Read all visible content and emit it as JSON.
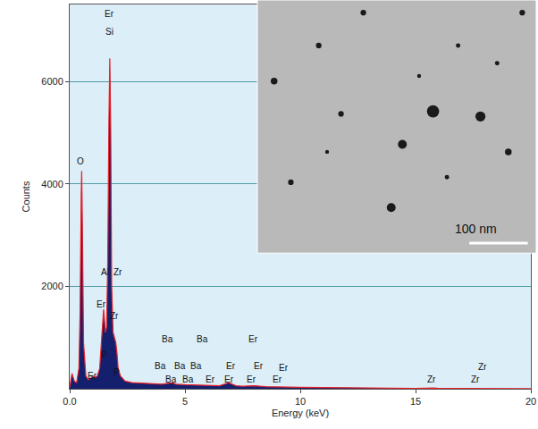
{
  "chart_data": {
    "type": "area",
    "x_label": "Energy (keV)",
    "y_label": "Counts",
    "x": [
      0.0,
      0.1,
      0.2,
      0.3,
      0.4,
      0.45,
      0.5,
      0.52,
      0.55,
      0.6,
      0.7,
      0.8,
      0.9,
      1.0,
      1.1,
      1.2,
      1.3,
      1.38,
      1.42,
      1.47,
      1.5,
      1.55,
      1.6,
      1.65,
      1.7,
      1.74,
      1.78,
      1.82,
      1.88,
      1.95,
      2.0,
      2.05,
      2.1,
      2.2,
      2.4,
      2.7,
      3.0,
      3.5,
      4.0,
      4.47,
      4.6,
      5.0,
      5.5,
      6.0,
      6.5,
      6.9,
      7.2,
      7.5,
      8.0,
      8.5,
      9.0,
      10.0,
      11.0,
      12.0,
      13.0,
      14.0,
      15.0,
      15.8,
      16.0,
      17.0,
      18.0,
      19.0,
      20.0
    ],
    "values": [
      30,
      300,
      150,
      120,
      400,
      1500,
      3800,
      4250,
      3200,
      900,
      250,
      180,
      200,
      250,
      220,
      250,
      400,
      900,
      1300,
      1550,
      1400,
      1100,
      1200,
      2500,
      5200,
      6450,
      5000,
      2000,
      1100,
      1000,
      900,
      700,
      400,
      250,
      150,
      120,
      110,
      100,
      90,
      120,
      90,
      80,
      70,
      60,
      60,
      120,
      60,
      50,
      60,
      40,
      40,
      30,
      25,
      20,
      15,
      10,
      8,
      15,
      8,
      5,
      5,
      3,
      2
    ],
    "color": "#e8202a",
    "xlim": [
      0,
      20
    ],
    "xticks": [
      {
        "value": 0,
        "label": "0.0"
      },
      5,
      10,
      15,
      20
    ],
    "ylim": [
      0,
      7500
    ],
    "yticks": [
      2000,
      4000,
      6000
    ],
    "grid": true,
    "annotations": [
      {
        "text": "Er",
        "x": 1.74,
        "y": 7310
      },
      {
        "text": "Si",
        "x": 1.74,
        "y": 6960
      },
      {
        "text": "O",
        "x": 0.47,
        "y": 4440
      },
      {
        "text": "Al",
        "x": 1.55,
        "y": 2270
      },
      {
        "text": "Zr",
        "x": 2.09,
        "y": 2270
      },
      {
        "text": "Er",
        "x": 1.36,
        "y": 1640
      },
      {
        "text": "Zr",
        "x": 1.94,
        "y": 1430
      },
      {
        "text": "P",
        "x": 1.5,
        "y": 650
      },
      {
        "text": "P",
        "x": 2.05,
        "y": 320
      },
      {
        "text": "Er",
        "x": 1.0,
        "y": 250
      },
      {
        "text": "Ba",
        "x": 4.26,
        "y": 970
      },
      {
        "text": "Ba",
        "x": 5.74,
        "y": 970
      },
      {
        "text": "Er",
        "x": 7.95,
        "y": 970
      },
      {
        "text": "Ba",
        "x": 3.95,
        "y": 440
      },
      {
        "text": "Ba",
        "x": 4.77,
        "y": 440
      },
      {
        "text": "Ba",
        "x": 5.47,
        "y": 440
      },
      {
        "text": "Er",
        "x": 7.0,
        "y": 440
      },
      {
        "text": "Er",
        "x": 8.18,
        "y": 440
      },
      {
        "text": "Er",
        "x": 9.3,
        "y": 405
      },
      {
        "text": "Ba",
        "x": 4.38,
        "y": 176
      },
      {
        "text": "Ba",
        "x": 5.12,
        "y": 176
      },
      {
        "text": "Er",
        "x": 6.12,
        "y": 176
      },
      {
        "text": "Er",
        "x": 6.9,
        "y": 176
      },
      {
        "text": "Er",
        "x": 7.9,
        "y": 176
      },
      {
        "text": "Er",
        "x": 9.03,
        "y": 176
      },
      {
        "text": "Zr",
        "x": 17.9,
        "y": 423
      },
      {
        "text": "Zr",
        "x": 15.7,
        "y": 176
      },
      {
        "text": "Zr",
        "x": 17.6,
        "y": 176
      }
    ]
  },
  "inset": {
    "scale_label": "100 nm"
  }
}
